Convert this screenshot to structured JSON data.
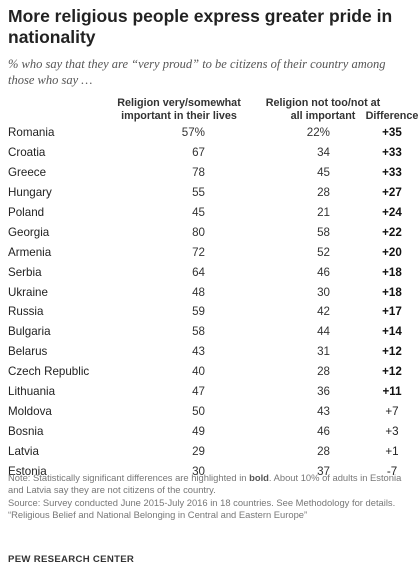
{
  "title": "More religious people express greater pride in nationality",
  "subtitle": "% who say that they are “very proud” to be citizens of their country among those who say …",
  "chart_data": {
    "type": "table",
    "columns": [
      "Religion very/somewhat important in their lives",
      "Religion not too/not at all important",
      "Difference"
    ],
    "rows": [
      {
        "country": "Romania",
        "v1": "57%",
        "v2": "22%",
        "diff": "+35",
        "sig": true
      },
      {
        "country": "Croatia",
        "v1": "67",
        "v2": "34",
        "diff": "+33",
        "sig": true
      },
      {
        "country": "Greece",
        "v1": "78",
        "v2": "45",
        "diff": "+33",
        "sig": true
      },
      {
        "country": "Hungary",
        "v1": "55",
        "v2": "28",
        "diff": "+27",
        "sig": true
      },
      {
        "country": "Poland",
        "v1": "45",
        "v2": "21",
        "diff": "+24",
        "sig": true
      },
      {
        "country": "Georgia",
        "v1": "80",
        "v2": "58",
        "diff": "+22",
        "sig": true
      },
      {
        "country": "Armenia",
        "v1": "72",
        "v2": "52",
        "diff": "+20",
        "sig": true
      },
      {
        "country": "Serbia",
        "v1": "64",
        "v2": "46",
        "diff": "+18",
        "sig": true
      },
      {
        "country": "Ukraine",
        "v1": "48",
        "v2": "30",
        "diff": "+18",
        "sig": true
      },
      {
        "country": "Russia",
        "v1": "59",
        "v2": "42",
        "diff": "+17",
        "sig": true
      },
      {
        "country": "Bulgaria",
        "v1": "58",
        "v2": "44",
        "diff": "+14",
        "sig": true
      },
      {
        "country": "Belarus",
        "v1": "43",
        "v2": "31",
        "diff": "+12",
        "sig": true
      },
      {
        "country": "Czech Republic",
        "v1": "40",
        "v2": "28",
        "diff": "+12",
        "sig": true
      },
      {
        "country": "Lithuania",
        "v1": "47",
        "v2": "36",
        "diff": "+11",
        "sig": true
      },
      {
        "country": "Moldova",
        "v1": "50",
        "v2": "43",
        "diff": "+7",
        "sig": false
      },
      {
        "country": "Bosnia",
        "v1": "49",
        "v2": "46",
        "diff": "+3",
        "sig": false
      },
      {
        "country": "Latvia",
        "v1": "29",
        "v2": "28",
        "diff": "+1",
        "sig": false
      },
      {
        "country": "Estonia",
        "v1": "30",
        "v2": "37",
        "diff": "-7",
        "sig": false
      }
    ]
  },
  "notes": {
    "note_prefix": "Note: Statistically significant differences are highlighted in ",
    "note_bold": "bold",
    "note_suffix": ". About 10% of adults in Estonia and Latvia say they are not citizens of the country.",
    "source": "Source: Survey conducted June 2015-July 2016 in 18 countries. See Methodology for details.",
    "report": "“Religious Belief and National Belonging in Central and Eastern Europe”"
  },
  "brand": "PEW RESEARCH CENTER"
}
